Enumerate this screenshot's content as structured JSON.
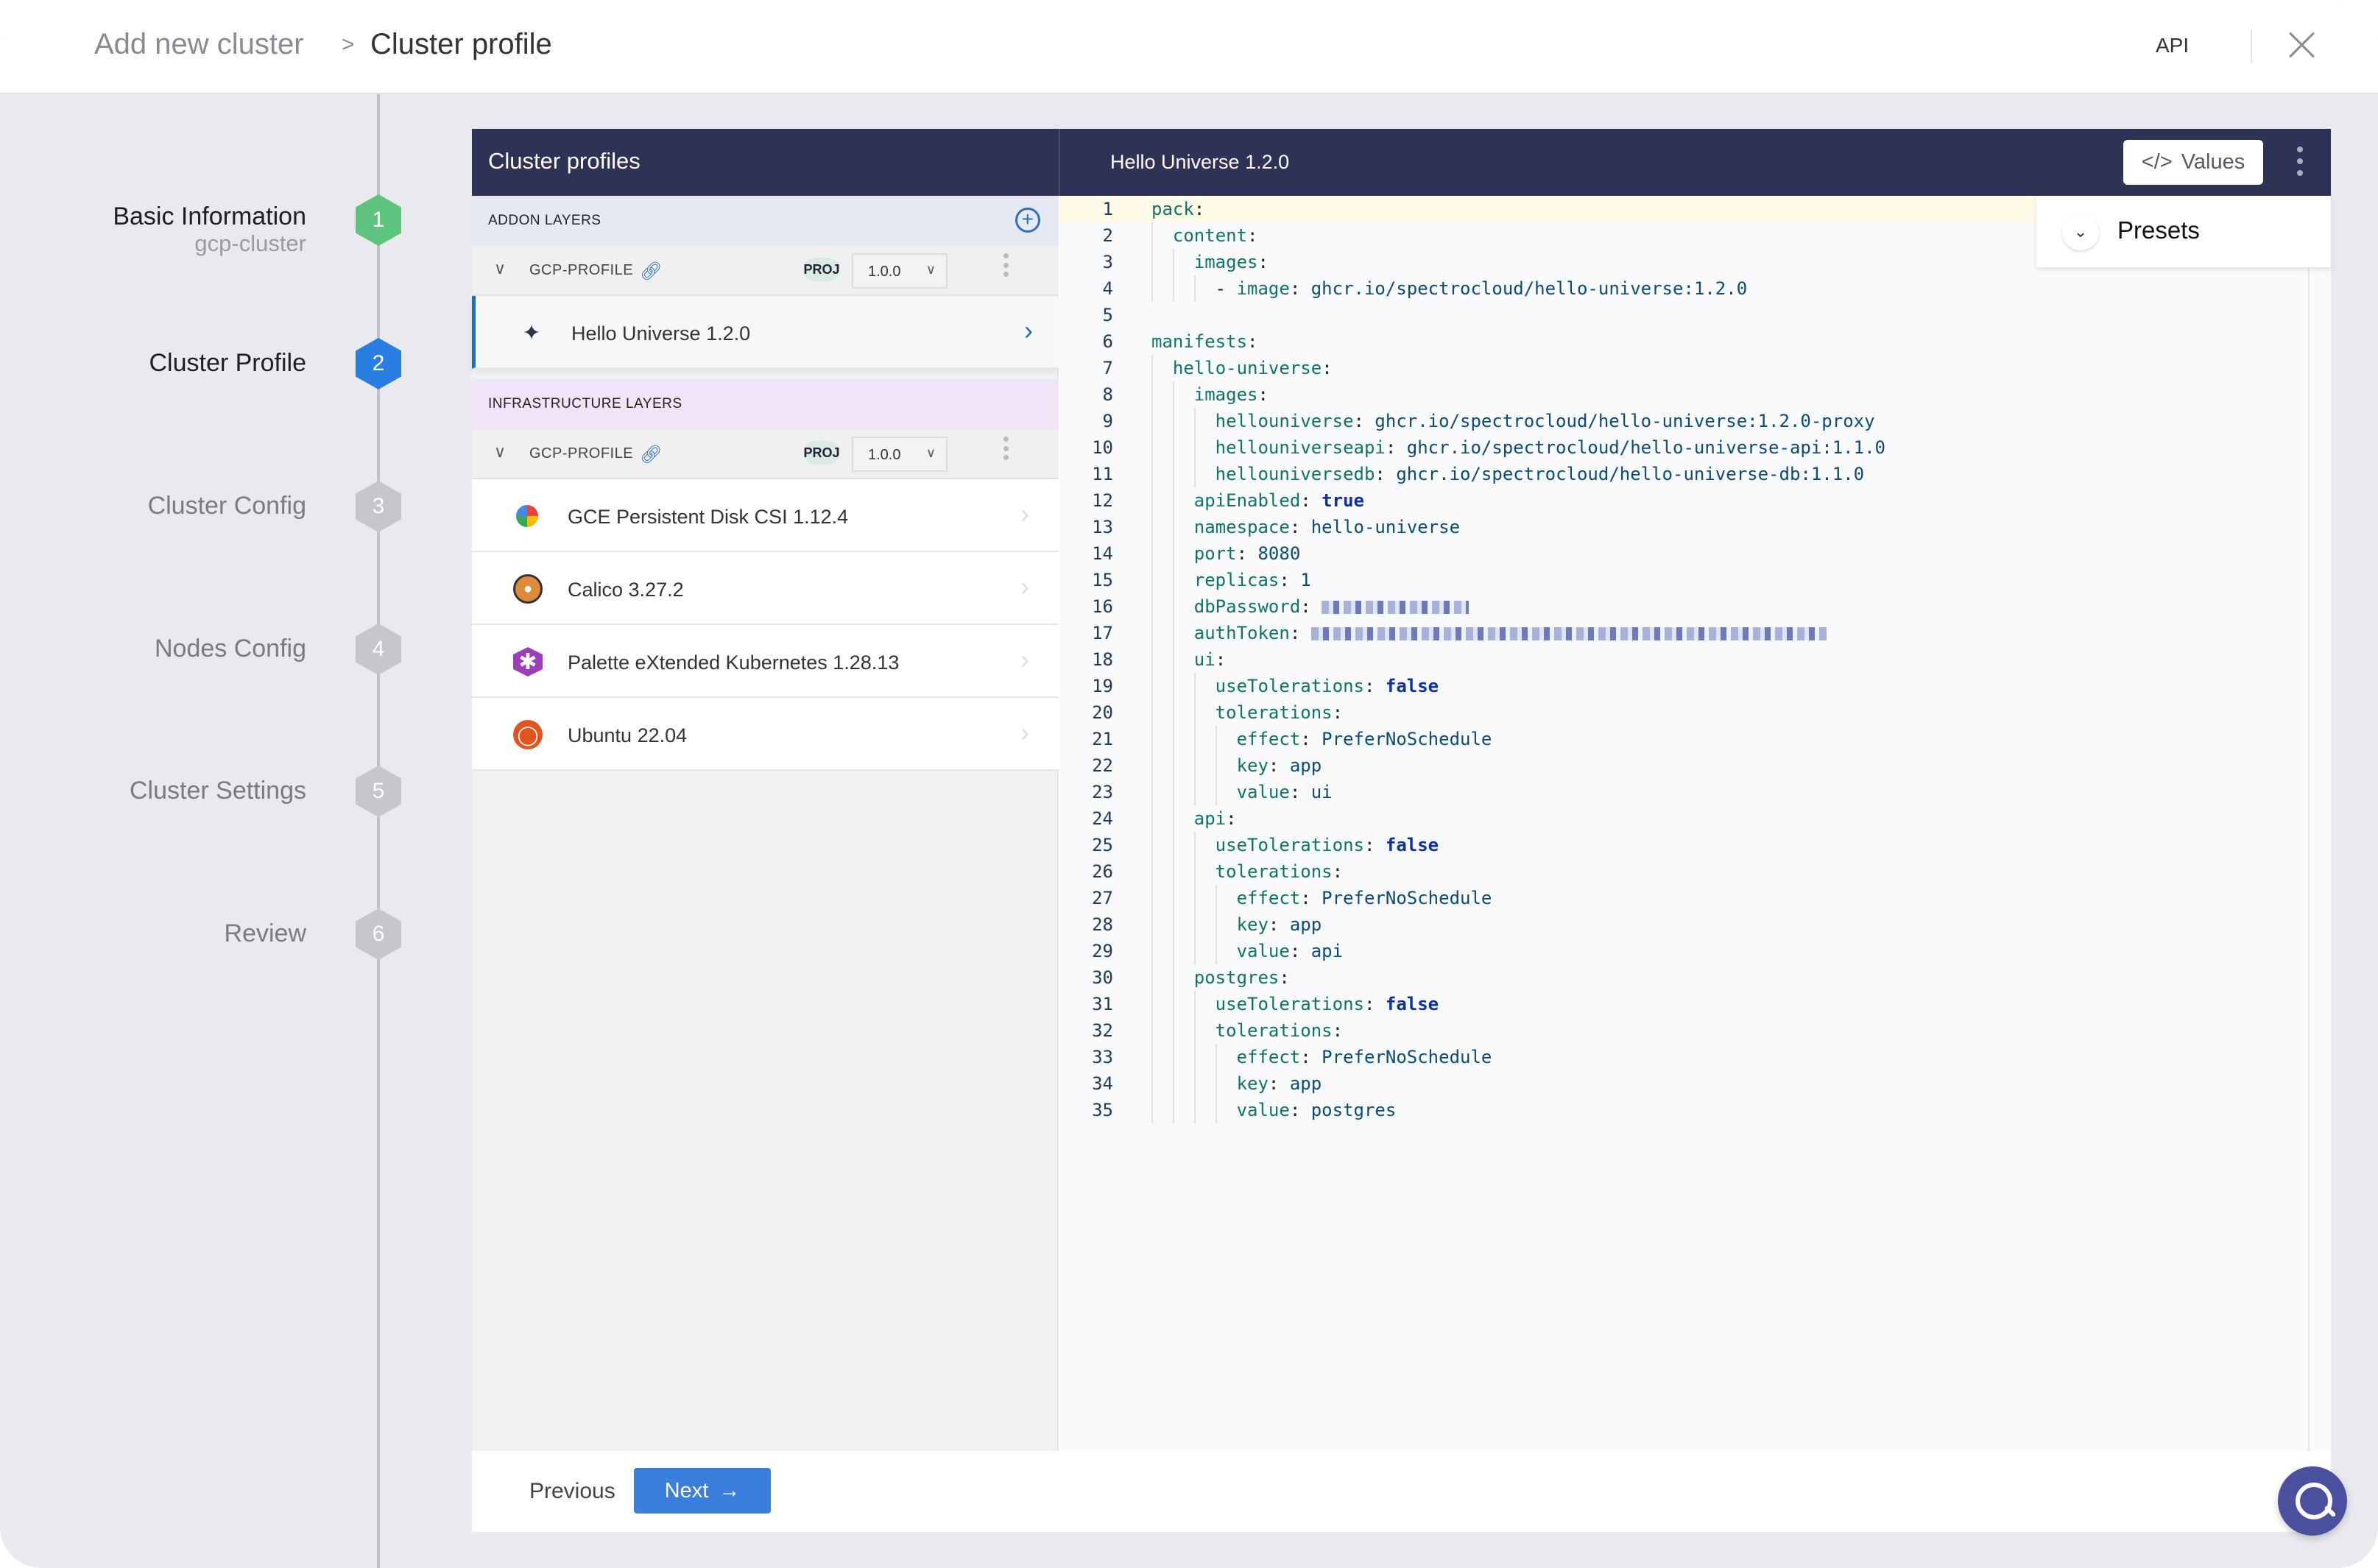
{
  "header": {
    "breadcrumb": [
      "Add new cluster",
      "Cluster profile"
    ],
    "separator": ">",
    "api_label": "API"
  },
  "stepper": {
    "steps": [
      {
        "number": "1",
        "label": "Basic Information",
        "sub": "gcp-cluster",
        "state": "complete",
        "color": "#5cc47c"
      },
      {
        "number": "2",
        "label": "Cluster Profile",
        "state": "active",
        "color": "#2a7de1"
      },
      {
        "number": "3",
        "label": "Cluster Config",
        "state": "pending",
        "color": "#c6c6cc"
      },
      {
        "number": "4",
        "label": "Nodes Config",
        "state": "pending",
        "color": "#c6c6cc"
      },
      {
        "number": "5",
        "label": "Cluster Settings",
        "state": "pending",
        "color": "#c6c6cc"
      },
      {
        "number": "6",
        "label": "Review",
        "state": "pending",
        "color": "#c6c6cc"
      }
    ]
  },
  "profiles_panel": {
    "title": "Cluster profiles",
    "addon": {
      "title": "ADDON LAYERS",
      "profile": {
        "name": "GCP-PROFILE",
        "badge": "PROJ",
        "version": "1.0.0"
      },
      "layers": [
        {
          "name": "Hello Universe 1.2.0",
          "icon": "hello-universe-icon",
          "selected": true
        }
      ]
    },
    "infra": {
      "title": "INFRASTRUCTURE LAYERS",
      "profile": {
        "name": "GCP-PROFILE",
        "badge": "PROJ",
        "version": "1.0.0"
      },
      "layers": [
        {
          "name": "GCE Persistent Disk CSI 1.12.4",
          "icon": "gce-icon"
        },
        {
          "name": "Calico 3.27.2",
          "icon": "calico-icon"
        },
        {
          "name": "Palette eXtended Kubernetes 1.28.13",
          "icon": "palette-icon"
        },
        {
          "name": "Ubuntu 22.04",
          "icon": "ubuntu-icon"
        }
      ]
    }
  },
  "editor": {
    "title": "Hello Universe 1.2.0",
    "values_label": "Values",
    "presets_label": "Presets",
    "lines": [
      {
        "n": "1",
        "i": 0,
        "k": "pack"
      },
      {
        "n": "2",
        "i": 1,
        "k": "content"
      },
      {
        "n": "3",
        "i": 2,
        "k": "images"
      },
      {
        "n": "4",
        "i": 3,
        "dash": true,
        "k": "image",
        "v": "ghcr.io/spectrocloud/hello-universe:1.2.0"
      },
      {
        "n": "5",
        "i": 0
      },
      {
        "n": "6",
        "i": 0,
        "k": "manifests"
      },
      {
        "n": "7",
        "i": 1,
        "k": "hello-universe"
      },
      {
        "n": "8",
        "i": 2,
        "k": "images"
      },
      {
        "n": "9",
        "i": 3,
        "k": "hellouniverse",
        "v": "ghcr.io/spectrocloud/hello-universe:1.2.0-proxy"
      },
      {
        "n": "10",
        "i": 3,
        "k": "hellouniverseapi",
        "v": "ghcr.io/spectrocloud/hello-universe-api:1.1.0"
      },
      {
        "n": "11",
        "i": 3,
        "k": "hellouniversedb",
        "v": "ghcr.io/spectrocloud/hello-universe-db:1.1.0"
      },
      {
        "n": "12",
        "i": 2,
        "k": "apiEnabled",
        "b": "true"
      },
      {
        "n": "13",
        "i": 2,
        "k": "namespace",
        "v": "hello-universe"
      },
      {
        "n": "14",
        "i": 2,
        "k": "port",
        "v": "8080"
      },
      {
        "n": "15",
        "i": 2,
        "k": "replicas",
        "v": "1"
      },
      {
        "n": "16",
        "i": 2,
        "k": "dbPassword",
        "redacted": true
      },
      {
        "n": "17",
        "i": 2,
        "k": "authToken",
        "redacted": true
      },
      {
        "n": "18",
        "i": 2,
        "k": "ui"
      },
      {
        "n": "19",
        "i": 3,
        "k": "useTolerations",
        "b": "false"
      },
      {
        "n": "20",
        "i": 3,
        "k": "tolerations"
      },
      {
        "n": "21",
        "i": 4,
        "k": "effect",
        "v": "PreferNoSchedule"
      },
      {
        "n": "22",
        "i": 4,
        "k": "key",
        "v": "app"
      },
      {
        "n": "23",
        "i": 4,
        "k": "value",
        "v": "ui"
      },
      {
        "n": "24",
        "i": 2,
        "k": "api"
      },
      {
        "n": "25",
        "i": 3,
        "k": "useTolerations",
        "b": "false"
      },
      {
        "n": "26",
        "i": 3,
        "k": "tolerations"
      },
      {
        "n": "27",
        "i": 4,
        "k": "effect",
        "v": "PreferNoSchedule"
      },
      {
        "n": "28",
        "i": 4,
        "k": "key",
        "v": "app"
      },
      {
        "n": "29",
        "i": 4,
        "k": "value",
        "v": "api"
      },
      {
        "n": "30",
        "i": 2,
        "k": "postgres"
      },
      {
        "n": "31",
        "i": 3,
        "k": "useTolerations",
        "b": "false"
      },
      {
        "n": "32",
        "i": 3,
        "k": "tolerations"
      },
      {
        "n": "33",
        "i": 4,
        "k": "effect",
        "v": "PreferNoSchedule"
      },
      {
        "n": "34",
        "i": 4,
        "k": "key",
        "v": "app"
      },
      {
        "n": "35",
        "i": 4,
        "k": "value",
        "v": "postgres"
      }
    ]
  },
  "footer": {
    "previous_label": "Previous",
    "next_label": "Next"
  },
  "colors": {
    "topbar": "#2e3356",
    "accent": "#3a7fdc",
    "yaml_key": "#0e7466",
    "yaml_value": "#0b4a7a"
  }
}
